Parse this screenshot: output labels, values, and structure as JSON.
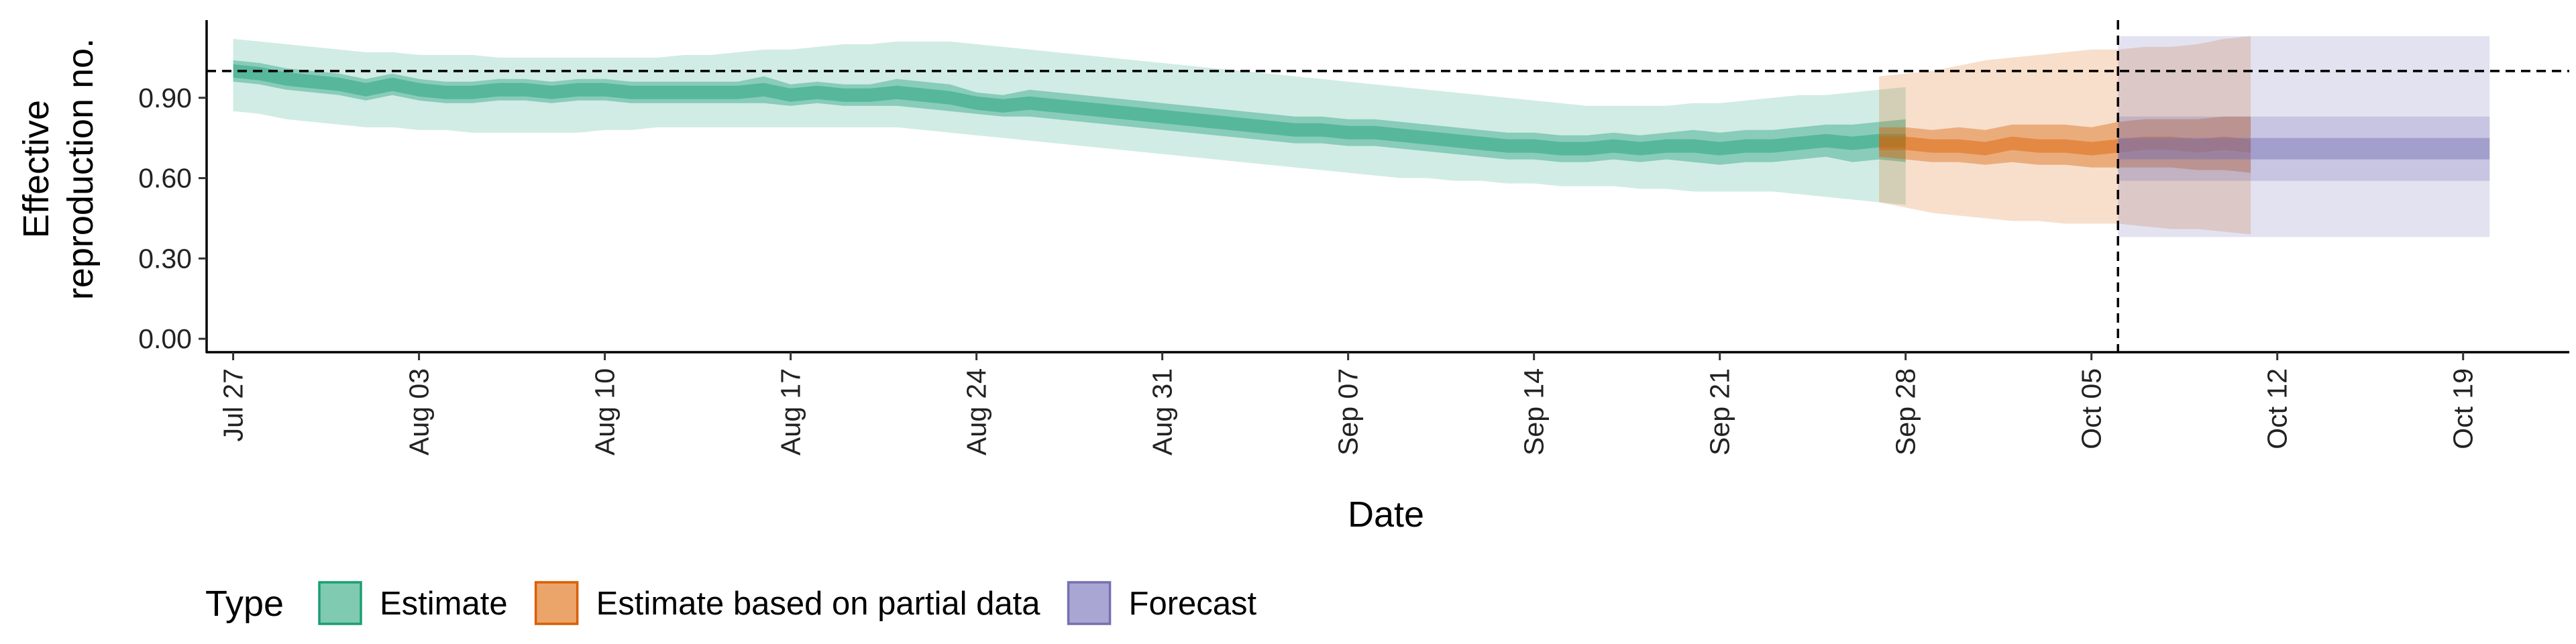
{
  "chart_data": {
    "type": "area",
    "xlabel": "Date",
    "ylabel_lines": [
      "Effective",
      "reproduction no."
    ],
    "x_start": "2020-07-26",
    "x_end": "2020-10-23",
    "ylim": [
      -0.05,
      1.19
    ],
    "y_ticks": [
      0.0,
      0.3,
      0.6,
      0.9
    ],
    "y_tick_labels": [
      "0.00",
      "0.30",
      "0.60",
      "0.90"
    ],
    "x_ticks": [
      "2020-07-27",
      "2020-08-03",
      "2020-08-10",
      "2020-08-17",
      "2020-08-24",
      "2020-08-31",
      "2020-09-07",
      "2020-09-14",
      "2020-09-21",
      "2020-09-28",
      "2020-10-05",
      "2020-10-12",
      "2020-10-19"
    ],
    "x_tick_labels": [
      "Jul 27",
      "Aug 03",
      "Aug 10",
      "Aug 17",
      "Aug 24",
      "Aug 31",
      "Sep 07",
      "Sep 14",
      "Sep 21",
      "Sep 28",
      "Oct 05",
      "Oct 12",
      "Oct 19"
    ],
    "reference_hline": 1.0,
    "reference_vline": "2020-10-06",
    "grid": false,
    "legend": {
      "title": "Type",
      "position": "bottom-left",
      "items": [
        {
          "key": "estimate",
          "label": "Estimate"
        },
        {
          "key": "partial",
          "label": "Estimate based on partial data"
        },
        {
          "key": "forecast",
          "label": "Forecast"
        }
      ]
    },
    "colors": {
      "estimate": {
        "fill": "#1b9e77",
        "box": "#7fcab0",
        "border": "#1b9e77"
      },
      "partial": {
        "fill": "#d95f02",
        "box": "#eba46a",
        "border": "#d95f02"
      },
      "forecast": {
        "fill": "#7570b3",
        "box": "#aaa6d3",
        "border": "#7570b3"
      }
    },
    "series": [
      {
        "key": "estimate",
        "start": "2020-07-27",
        "median": [
          1.0,
          0.99,
          0.97,
          0.96,
          0.95,
          0.93,
          0.95,
          0.93,
          0.92,
          0.92,
          0.93,
          0.93,
          0.92,
          0.93,
          0.93,
          0.92,
          0.92,
          0.92,
          0.92,
          0.92,
          0.93,
          0.91,
          0.92,
          0.91,
          0.91,
          0.92,
          0.91,
          0.9,
          0.88,
          0.87,
          0.88,
          0.87,
          0.86,
          0.85,
          0.84,
          0.83,
          0.82,
          0.81,
          0.8,
          0.79,
          0.78,
          0.78,
          0.77,
          0.77,
          0.76,
          0.75,
          0.74,
          0.73,
          0.72,
          0.72,
          0.71,
          0.71,
          0.72,
          0.71,
          0.72,
          0.72,
          0.71,
          0.72,
          0.72,
          0.73,
          0.74,
          0.73,
          0.74,
          0.74
        ],
        "lower50": [
          0.96,
          0.95,
          0.93,
          0.92,
          0.91,
          0.89,
          0.91,
          0.89,
          0.88,
          0.88,
          0.89,
          0.89,
          0.88,
          0.89,
          0.89,
          0.88,
          0.88,
          0.88,
          0.88,
          0.88,
          0.88,
          0.87,
          0.88,
          0.87,
          0.87,
          0.87,
          0.86,
          0.85,
          0.84,
          0.83,
          0.83,
          0.82,
          0.81,
          0.8,
          0.79,
          0.78,
          0.77,
          0.76,
          0.75,
          0.74,
          0.73,
          0.73,
          0.72,
          0.72,
          0.71,
          0.7,
          0.69,
          0.68,
          0.67,
          0.67,
          0.66,
          0.66,
          0.67,
          0.66,
          0.67,
          0.66,
          0.65,
          0.66,
          0.66,
          0.67,
          0.68,
          0.66,
          0.67,
          0.66
        ],
        "upper50": [
          1.04,
          1.03,
          1.01,
          1.0,
          0.99,
          0.97,
          0.99,
          0.97,
          0.96,
          0.96,
          0.97,
          0.97,
          0.96,
          0.97,
          0.97,
          0.96,
          0.96,
          0.96,
          0.96,
          0.96,
          0.98,
          0.95,
          0.96,
          0.95,
          0.95,
          0.97,
          0.96,
          0.95,
          0.92,
          0.91,
          0.93,
          0.92,
          0.91,
          0.9,
          0.89,
          0.88,
          0.87,
          0.86,
          0.85,
          0.84,
          0.83,
          0.83,
          0.82,
          0.82,
          0.81,
          0.8,
          0.79,
          0.78,
          0.77,
          0.77,
          0.76,
          0.76,
          0.77,
          0.76,
          0.77,
          0.78,
          0.77,
          0.78,
          0.78,
          0.79,
          0.8,
          0.8,
          0.81,
          0.82
        ],
        "lower90": [
          0.85,
          0.84,
          0.82,
          0.81,
          0.8,
          0.79,
          0.79,
          0.78,
          0.78,
          0.77,
          0.77,
          0.77,
          0.77,
          0.77,
          0.78,
          0.78,
          0.79,
          0.79,
          0.79,
          0.79,
          0.79,
          0.79,
          0.79,
          0.79,
          0.79,
          0.79,
          0.78,
          0.77,
          0.76,
          0.75,
          0.74,
          0.73,
          0.72,
          0.71,
          0.7,
          0.69,
          0.68,
          0.67,
          0.66,
          0.65,
          0.64,
          0.63,
          0.62,
          0.61,
          0.6,
          0.6,
          0.59,
          0.59,
          0.58,
          0.58,
          0.57,
          0.57,
          0.57,
          0.56,
          0.56,
          0.55,
          0.55,
          0.55,
          0.55,
          0.54,
          0.53,
          0.52,
          0.51,
          0.5
        ],
        "upper90": [
          1.12,
          1.11,
          1.1,
          1.09,
          1.08,
          1.07,
          1.07,
          1.06,
          1.06,
          1.06,
          1.05,
          1.05,
          1.05,
          1.05,
          1.05,
          1.05,
          1.05,
          1.06,
          1.06,
          1.07,
          1.08,
          1.08,
          1.09,
          1.1,
          1.1,
          1.11,
          1.11,
          1.11,
          1.1,
          1.09,
          1.08,
          1.07,
          1.06,
          1.05,
          1.04,
          1.03,
          1.02,
          1.01,
          1.0,
          0.99,
          0.98,
          0.97,
          0.96,
          0.95,
          0.94,
          0.93,
          0.92,
          0.91,
          0.9,
          0.89,
          0.88,
          0.87,
          0.87,
          0.87,
          0.87,
          0.88,
          0.88,
          0.89,
          0.9,
          0.91,
          0.91,
          0.92,
          0.93,
          0.94
        ]
      },
      {
        "key": "partial",
        "start": "2020-09-27",
        "median": [
          0.73,
          0.73,
          0.72,
          0.72,
          0.71,
          0.73,
          0.72,
          0.72,
          0.71,
          0.72,
          0.73,
          0.73,
          0.72,
          0.73,
          0.72
        ],
        "lower50": [
          0.68,
          0.67,
          0.66,
          0.66,
          0.65,
          0.66,
          0.65,
          0.65,
          0.64,
          0.64,
          0.64,
          0.64,
          0.63,
          0.63,
          0.62
        ],
        "upper50": [
          0.79,
          0.79,
          0.78,
          0.79,
          0.78,
          0.8,
          0.8,
          0.8,
          0.79,
          0.81,
          0.82,
          0.82,
          0.82,
          0.83,
          0.83
        ],
        "lower90": [
          0.51,
          0.49,
          0.47,
          0.46,
          0.45,
          0.44,
          0.44,
          0.43,
          0.43,
          0.43,
          0.42,
          0.41,
          0.41,
          0.4,
          0.39
        ],
        "upper90": [
          0.98,
          0.99,
          1.0,
          1.02,
          1.04,
          1.05,
          1.06,
          1.07,
          1.08,
          1.08,
          1.09,
          1.09,
          1.1,
          1.12,
          1.13
        ]
      },
      {
        "key": "forecast",
        "start": "2020-10-06",
        "end": "2020-10-20",
        "median": 0.71,
        "lower25": 0.67,
        "upper25": 0.75,
        "lower50": 0.59,
        "upper50": 0.83,
        "lower90": 0.38,
        "upper90": 1.13
      }
    ]
  }
}
